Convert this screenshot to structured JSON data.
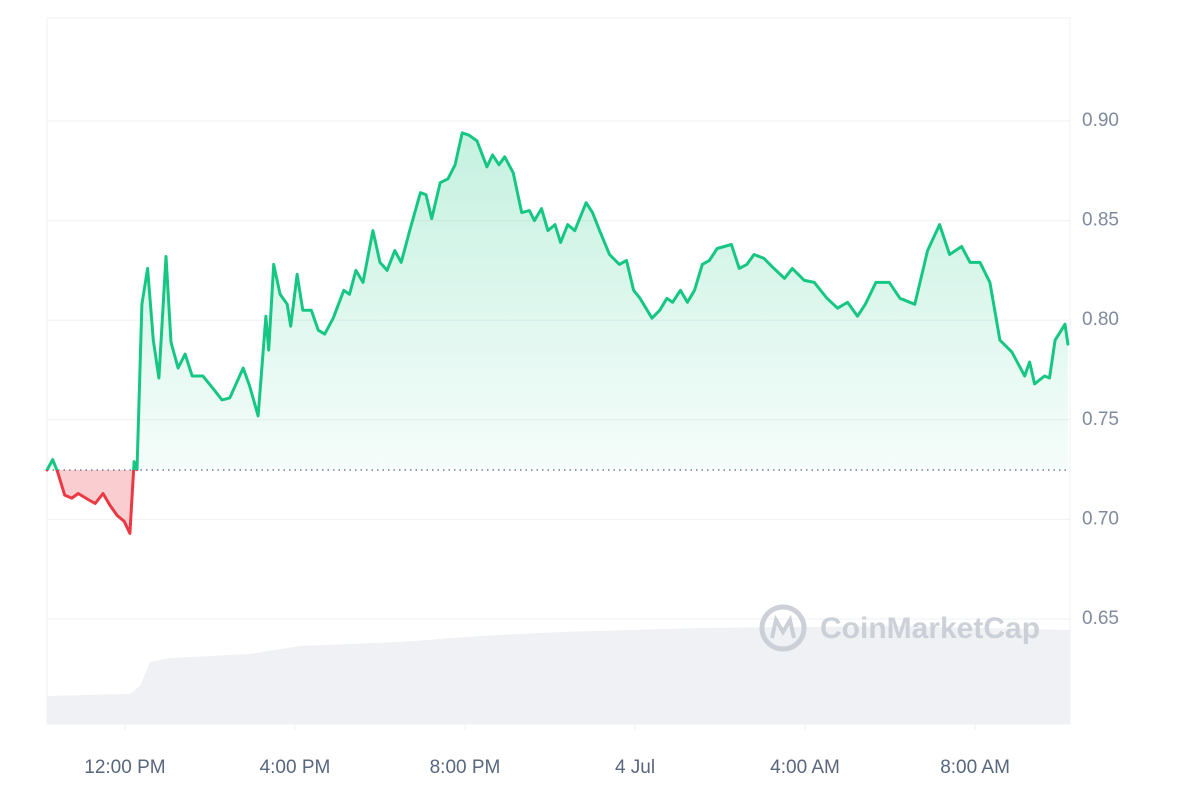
{
  "chart_data": {
    "type": "line",
    "watermark": "CoinMarketCap",
    "x": [
      "3 Jul 10:10 AM",
      "3 Jul 10:18 AM",
      "3 Jul 10:25 AM",
      "3 Jul 10:35 AM",
      "3 Jul 10:45 AM",
      "3 Jul 10:54 AM",
      "3 Jul 11:08 AM",
      "3 Jul 11:18 AM",
      "3 Jul 11:29 AM",
      "3 Jul 11:39 AM",
      "3 Jul 11:49 AM",
      "3 Jul 11:59 AM",
      "3 Jul 12:07 PM",
      "3 Jul 12:13 PM",
      "3 Jul 12:17 PM",
      "3 Jul 12:24 PM",
      "3 Jul 12:32 PM",
      "3 Jul 12:40 PM",
      "3 Jul 12:48 PM",
      "3 Jul 12:58 PM",
      "3 Jul 1:05 PM",
      "3 Jul 1:15 PM",
      "3 Jul 1:25 PM",
      "3 Jul 1:35 PM",
      "3 Jul 1:50 PM",
      "3 Jul 2:06 PM",
      "3 Jul 2:17 PM",
      "3 Jul 2:28 PM",
      "3 Jul 2:47 PM",
      "3 Jul 2:56 PM",
      "3 Jul 3:08 PM",
      "3 Jul 3:19 PM",
      "3 Jul 3:23 PM",
      "3 Jul 3:30 PM",
      "3 Jul 3:39 PM",
      "3 Jul 3:49 PM",
      "3 Jul 3:54 PM",
      "3 Jul 4:03 PM",
      "3 Jul 4:11 PM",
      "3 Jul 4:23 PM",
      "3 Jul 4:33 PM",
      "3 Jul 4:42 PM",
      "3 Jul 4:54 PM",
      "3 Jul 5:09 PM",
      "3 Jul 5:17 PM",
      "3 Jul 5:26 PM",
      "3 Jul 5:36 PM",
      "3 Jul 5:50 PM",
      "3 Jul 6:00 PM",
      "3 Jul 6:10 PM",
      "3 Jul 6:21 PM",
      "3 Jul 6:30 PM",
      "3 Jul 6:42 PM",
      "3 Jul 6:57 PM",
      "3 Jul 7:05 PM",
      "3 Jul 7:13 PM",
      "3 Jul 7:25 PM",
      "3 Jul 7:36 PM",
      "3 Jul 7:46 PM",
      "3 Jul 7:56 PM",
      "3 Jul 8:05 PM",
      "3 Jul 8:17 PM",
      "3 Jul 8:31 PM",
      "3 Jul 8:39 PM",
      "3 Jul 8:48 PM",
      "3 Jul 8:56 PM",
      "3 Jul 9:08 PM",
      "3 Jul 9:20 PM",
      "3 Jul 9:31 PM",
      "3 Jul 9:38 PM",
      "3 Jul 9:48 PM",
      "3 Jul 9:57 PM",
      "3 Jul 10:07 PM",
      "3 Jul 10:15 PM",
      "3 Jul 10:25 PM",
      "3 Jul 10:35 PM",
      "3 Jul 10:51 PM",
      "3 Jul 11:00 PM",
      "3 Jul 11:10 PM",
      "3 Jul 11:24 PM",
      "3 Jul 11:38 PM",
      "3 Jul 11:48 PM",
      "3 Jul 11:58 PM",
      "4 Jul 12:07 AM",
      "4 Jul 12:24 AM",
      "4 Jul 12:35 AM",
      "4 Jul 12:45 AM",
      "4 Jul 12:53 AM",
      "4 Jul 1:04 AM",
      "4 Jul 1:14 AM",
      "4 Jul 1:24 AM",
      "4 Jul 1:35 AM",
      "4 Jul 1:45 AM",
      "4 Jul 1:56 AM",
      "4 Jul 2:16 AM",
      "4 Jul 2:27 AM",
      "4 Jul 2:38 AM",
      "4 Jul 2:48 AM",
      "4 Jul 3:02 AM",
      "4 Jul 3:16 AM",
      "4 Jul 3:31 AM",
      "4 Jul 3:42 AM",
      "4 Jul 3:59 AM",
      "4 Jul 4:13 AM",
      "4 Jul 4:31 AM",
      "4 Jul 4:46 AM",
      "4 Jul 5:00 AM",
      "4 Jul 5:14 AM",
      "4 Jul 5:25 AM",
      "4 Jul 5:40 AM",
      "4 Jul 5:59 AM",
      "4 Jul 6:14 AM",
      "4 Jul 6:35 AM",
      "4 Jul 6:53 AM",
      "4 Jul 7:10 AM",
      "4 Jul 7:24 AM",
      "4 Jul 7:41 AM",
      "4 Jul 7:53 AM",
      "4 Jul 8:07 AM",
      "4 Jul 8:21 AM",
      "4 Jul 8:35 AM",
      "4 Jul 8:52 AM",
      "4 Jul 9:10 AM",
      "4 Jul 9:17 AM",
      "4 Jul 9:24 AM",
      "4 Jul 9:38 AM",
      "4 Jul 9:45 AM",
      "4 Jul 9:53 AM",
      "4 Jul 10:00 AM",
      "4 Jul 10:07 AM",
      "4 Jul 10:11 AM"
    ],
    "series": [
      {
        "up_color": "#16c784",
        "down_color": "#ea3943",
        "values": [
          0.7248,
          0.73,
          0.7238,
          0.7122,
          0.7107,
          0.713,
          0.71,
          0.708,
          0.713,
          0.707,
          0.702,
          0.699,
          0.693,
          0.729,
          0.725,
          0.808,
          0.826,
          0.79,
          0.771,
          0.832,
          0.789,
          0.776,
          0.783,
          0.772,
          0.772,
          0.765,
          0.76,
          0.761,
          0.776,
          0.767,
          0.752,
          0.802,
          0.785,
          0.828,
          0.813,
          0.808,
          0.797,
          0.823,
          0.805,
          0.805,
          0.795,
          0.793,
          0.801,
          0.815,
          0.813,
          0.825,
          0.819,
          0.845,
          0.829,
          0.825,
          0.835,
          0.829,
          0.845,
          0.864,
          0.863,
          0.851,
          0.869,
          0.871,
          0.878,
          0.894,
          0.893,
          0.89,
          0.877,
          0.883,
          0.878,
          0.882,
          0.874,
          0.854,
          0.855,
          0.85,
          0.856,
          0.845,
          0.848,
          0.839,
          0.848,
          0.845,
          0.859,
          0.854,
          0.845,
          0.833,
          0.828,
          0.83,
          0.815,
          0.811,
          0.801,
          0.805,
          0.811,
          0.809,
          0.815,
          0.809,
          0.815,
          0.828,
          0.83,
          0.836,
          0.838,
          0.826,
          0.828,
          0.833,
          0.831,
          0.826,
          0.821,
          0.826,
          0.82,
          0.819,
          0.811,
          0.806,
          0.809,
          0.802,
          0.808,
          0.819,
          0.819,
          0.811,
          0.808,
          0.835,
          0.848,
          0.833,
          0.837,
          0.829,
          0.829,
          0.819,
          0.79,
          0.784,
          0.772,
          0.779,
          0.768,
          0.772,
          0.771,
          0.79,
          0.794,
          0.798,
          0.788
        ]
      }
    ],
    "baseline": 0.7248,
    "xlim": [
      "3 Jul 10:10 AM",
      "4 Jul 10:14 AM"
    ],
    "xticks": [
      {
        "value": "3 Jul 12:00 PM",
        "label": "12:00 PM"
      },
      {
        "value": "3 Jul 4:00 PM",
        "label": "4:00 PM"
      },
      {
        "value": "3 Jul 8:00 PM",
        "label": "8:00 PM"
      },
      {
        "value": "4 Jul 12:00 AM",
        "label": "4 Jul"
      },
      {
        "value": "4 Jul 4:00 AM",
        "label": "4:00 AM"
      },
      {
        "value": "4 Jul 8:00 AM",
        "label": "8:00 AM"
      }
    ],
    "ylim": [
      0.5973,
      0.9517
    ],
    "yticks": [
      {
        "value": 0.65,
        "label": "0.65"
      },
      {
        "value": 0.7,
        "label": "0.70"
      },
      {
        "value": 0.75,
        "label": "0.75"
      },
      {
        "value": 0.8,
        "label": "0.80"
      },
      {
        "value": 0.85,
        "label": "0.85"
      },
      {
        "value": 0.9,
        "label": "0.90"
      }
    ],
    "grid": true
  }
}
